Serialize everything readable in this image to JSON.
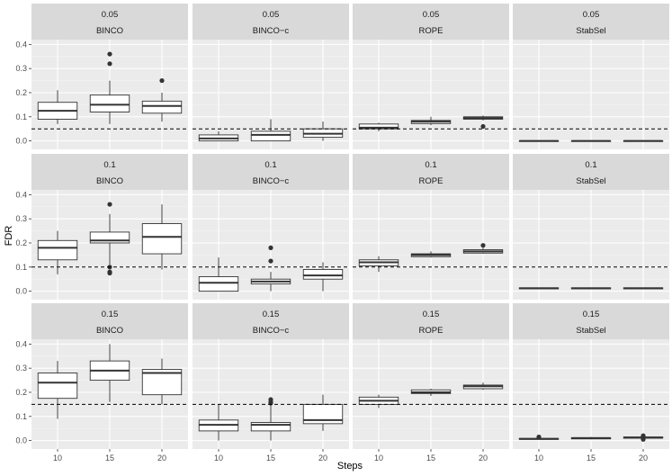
{
  "chart_data": {
    "type": "boxplot",
    "xlabel": "Steps",
    "ylabel": "FDR",
    "ylim": [
      -0.035,
      0.42
    ],
    "yticks": [
      0.0,
      0.1,
      0.2,
      0.3,
      0.4
    ],
    "ytick_labels": [
      "0.0",
      "0.1",
      "0.2",
      "0.3",
      "0.4"
    ],
    "categories": [
      "10",
      "15",
      "20"
    ],
    "grid": true,
    "methods": [
      "BINCO",
      "BINCO−c",
      "ROPE",
      "StabSel"
    ],
    "thresholds": [
      "0.05",
      "0.1",
      "0.15"
    ],
    "threshold_values": [
      0.05,
      0.1,
      0.15
    ],
    "panels": [
      {
        "threshold": 0,
        "method": 0,
        "boxes": [
          {
            "min": 0.07,
            "q1": 0.09,
            "median": 0.125,
            "q3": 0.16,
            "max": 0.21,
            "outliers": []
          },
          {
            "min": 0.07,
            "q1": 0.12,
            "median": 0.15,
            "q3": 0.19,
            "max": 0.25,
            "outliers": [
              0.32,
              0.36
            ]
          },
          {
            "min": 0.08,
            "q1": 0.115,
            "median": 0.145,
            "q3": 0.165,
            "max": 0.2,
            "outliers": [
              0.25
            ]
          }
        ]
      },
      {
        "threshold": 0,
        "method": 1,
        "boxes": [
          {
            "min": 0.0,
            "q1": 0.0,
            "median": 0.01,
            "q3": 0.025,
            "max": 0.04,
            "outliers": []
          },
          {
            "min": 0.0,
            "q1": 0.0,
            "median": 0.025,
            "q3": 0.04,
            "max": 0.09,
            "outliers": []
          },
          {
            "min": 0.0,
            "q1": 0.015,
            "median": 0.03,
            "q3": 0.05,
            "max": 0.08,
            "outliers": []
          }
        ]
      },
      {
        "threshold": 0,
        "method": 2,
        "boxes": [
          {
            "min": 0.04,
            "q1": 0.05,
            "median": 0.055,
            "q3": 0.07,
            "max": 0.075,
            "outliers": []
          },
          {
            "min": 0.065,
            "q1": 0.072,
            "median": 0.08,
            "q3": 0.085,
            "max": 0.1,
            "outliers": []
          },
          {
            "min": 0.085,
            "q1": 0.09,
            "median": 0.095,
            "q3": 0.1,
            "max": 0.105,
            "outliers": [
              0.06
            ]
          }
        ]
      },
      {
        "threshold": 0,
        "method": 3,
        "boxes": [
          {
            "min": 0.0,
            "q1": 0.0,
            "median": 0.0,
            "q3": 0.0,
            "max": 0.0,
            "outliers": []
          },
          {
            "min": 0.0,
            "q1": 0.0,
            "median": 0.0,
            "q3": 0.0,
            "max": 0.0,
            "outliers": []
          },
          {
            "min": 0.0,
            "q1": 0.0,
            "median": 0.0,
            "q3": 0.0,
            "max": 0.0,
            "outliers": []
          }
        ]
      },
      {
        "threshold": 1,
        "method": 0,
        "boxes": [
          {
            "min": 0.07,
            "q1": 0.13,
            "median": 0.18,
            "q3": 0.21,
            "max": 0.25,
            "outliers": []
          },
          {
            "min": 0.11,
            "q1": 0.2,
            "median": 0.21,
            "q3": 0.245,
            "max": 0.32,
            "outliers": [
              0.08,
              0.075,
              0.1,
              0.36
            ]
          },
          {
            "min": 0.09,
            "q1": 0.155,
            "median": 0.225,
            "q3": 0.28,
            "max": 0.36,
            "outliers": []
          }
        ]
      },
      {
        "threshold": 1,
        "method": 1,
        "boxes": [
          {
            "min": 0.0,
            "q1": 0.0,
            "median": 0.035,
            "q3": 0.06,
            "max": 0.14,
            "outliers": []
          },
          {
            "min": 0.0,
            "q1": 0.03,
            "median": 0.04,
            "q3": 0.05,
            "max": 0.08,
            "outliers": [
              0.125,
              0.18
            ]
          },
          {
            "min": 0.0,
            "q1": 0.05,
            "median": 0.065,
            "q3": 0.09,
            "max": 0.12,
            "outliers": []
          }
        ]
      },
      {
        "threshold": 1,
        "method": 2,
        "boxes": [
          {
            "min": 0.08,
            "q1": 0.105,
            "median": 0.12,
            "q3": 0.13,
            "max": 0.145,
            "outliers": []
          },
          {
            "min": 0.14,
            "q1": 0.143,
            "median": 0.15,
            "q3": 0.155,
            "max": 0.165,
            "outliers": []
          },
          {
            "min": 0.155,
            "q1": 0.158,
            "median": 0.165,
            "q3": 0.172,
            "max": 0.18,
            "outliers": [
              0.19
            ]
          }
        ]
      },
      {
        "threshold": 1,
        "method": 3,
        "boxes": [
          {
            "min": 0.01,
            "q1": 0.01,
            "median": 0.012,
            "q3": 0.014,
            "max": 0.015,
            "outliers": []
          },
          {
            "min": 0.01,
            "q1": 0.01,
            "median": 0.012,
            "q3": 0.014,
            "max": 0.015,
            "outliers": []
          },
          {
            "min": 0.01,
            "q1": 0.01,
            "median": 0.012,
            "q3": 0.014,
            "max": 0.015,
            "outliers": []
          }
        ]
      },
      {
        "threshold": 2,
        "method": 0,
        "boxes": [
          {
            "min": 0.09,
            "q1": 0.175,
            "median": 0.24,
            "q3": 0.28,
            "max": 0.33,
            "outliers": []
          },
          {
            "min": 0.16,
            "q1": 0.25,
            "median": 0.29,
            "q3": 0.33,
            "max": 0.4,
            "outliers": []
          },
          {
            "min": 0.15,
            "q1": 0.19,
            "median": 0.28,
            "q3": 0.295,
            "max": 0.34,
            "outliers": []
          }
        ]
      },
      {
        "threshold": 2,
        "method": 1,
        "boxes": [
          {
            "min": 0.0,
            "q1": 0.04,
            "median": 0.065,
            "q3": 0.085,
            "max": 0.15,
            "outliers": []
          },
          {
            "min": 0.0,
            "q1": 0.04,
            "median": 0.065,
            "q3": 0.075,
            "max": 0.15,
            "outliers": [
              0.16,
              0.17,
              0.155
            ]
          },
          {
            "min": 0.04,
            "q1": 0.07,
            "median": 0.085,
            "q3": 0.15,
            "max": 0.19,
            "outliers": []
          }
        ]
      },
      {
        "threshold": 2,
        "method": 2,
        "boxes": [
          {
            "min": 0.135,
            "q1": 0.15,
            "median": 0.165,
            "q3": 0.18,
            "max": 0.19,
            "outliers": []
          },
          {
            "min": 0.185,
            "q1": 0.195,
            "median": 0.2,
            "q3": 0.21,
            "max": 0.215,
            "outliers": []
          },
          {
            "min": 0.21,
            "q1": 0.215,
            "median": 0.225,
            "q3": 0.23,
            "max": 0.24,
            "outliers": []
          }
        ]
      },
      {
        "threshold": 2,
        "method": 3,
        "boxes": [
          {
            "min": 0.005,
            "q1": 0.005,
            "median": 0.007,
            "q3": 0.009,
            "max": 0.01,
            "outliers": [
              0.015
            ]
          },
          {
            "min": 0.005,
            "q1": 0.007,
            "median": 0.01,
            "q3": 0.012,
            "max": 0.015,
            "outliers": []
          },
          {
            "min": 0.01,
            "q1": 0.01,
            "median": 0.012,
            "q3": 0.015,
            "max": 0.017,
            "outliers": [
              0.005,
              0.02
            ]
          }
        ]
      }
    ],
    "colors": {
      "panel_bg": "#ebebeb",
      "strip_bg": "#d9d9d9",
      "grid_major": "#ffffff",
      "box_fill": "#ffffff",
      "box_line": "#333333",
      "point": "#333333",
      "reference_line": "#000000"
    }
  }
}
